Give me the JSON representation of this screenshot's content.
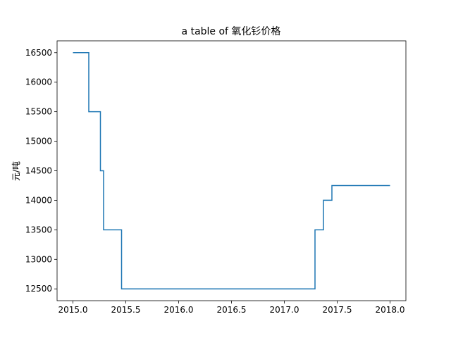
{
  "chart_data": {
    "type": "line",
    "title": "a table of 氧化钐价格",
    "xlabel": "",
    "ylabel": "元/吨",
    "xlim": [
      2014.85,
      2018.15
    ],
    "ylim": [
      12300,
      16700
    ],
    "x_ticks": [
      2015.0,
      2015.5,
      2016.0,
      2016.5,
      2017.0,
      2017.5,
      2018.0
    ],
    "x_tick_labels": [
      "2015.0",
      "2015.5",
      "2016.0",
      "2016.5",
      "2017.0",
      "2017.5",
      "2018.0"
    ],
    "y_ticks": [
      12500,
      13000,
      13500,
      14000,
      14500,
      15000,
      15500,
      16000,
      16500
    ],
    "y_tick_labels": [
      "12500",
      "13000",
      "13500",
      "14000",
      "14500",
      "15000",
      "15500",
      "16000",
      "16500"
    ],
    "grid": false,
    "series": [
      {
        "color": "#1f77b4",
        "x": [
          2015.0,
          2015.15,
          2015.15,
          2015.26,
          2015.26,
          2015.29,
          2015.29,
          2015.46,
          2015.46,
          2017.29,
          2017.29,
          2017.37,
          2017.37,
          2017.45,
          2017.45,
          2018.0
        ],
        "y": [
          16500,
          16500,
          15500,
          15500,
          14500,
          14500,
          13500,
          13500,
          12500,
          12500,
          13500,
          13500,
          14000,
          14000,
          14250,
          14250
        ]
      }
    ]
  }
}
